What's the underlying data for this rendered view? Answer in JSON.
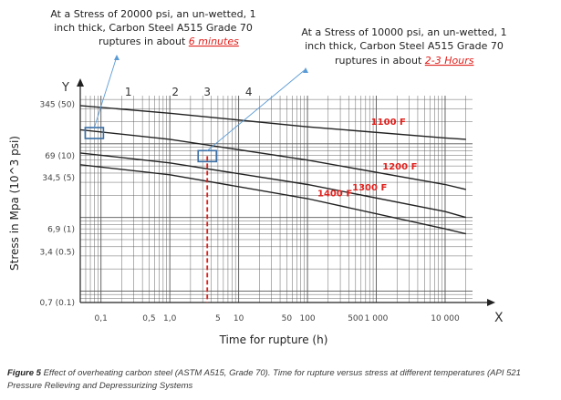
{
  "chart_data": {
    "type": "line",
    "title": "",
    "xlabel": "Time for rupture (h)",
    "ylabel": "Stress in Mpa (10^3 psi)",
    "x_axis_letter": "X",
    "y_axis_letter": "Y",
    "xscale": "log",
    "yscale": "log",
    "xlim": [
      0.05,
      25000
    ],
    "ylim": [
      0.7,
      450
    ],
    "x_tick_labels": [
      "0,1",
      "0,5",
      "1,0",
      "5",
      "10",
      "50",
      "100",
      "500",
      "1 000",
      "10 000"
    ],
    "y_tick_labels": [
      "345 (50)",
      "69 (10)",
      "34,5 (5)",
      "6,9 (1)",
      "3,4 (0.5)",
      "0,7 (0.1)"
    ],
    "curve_numbers": [
      "1",
      "2",
      "3",
      "4"
    ],
    "series": [
      {
        "name": "1100 F",
        "x": [
          0.05,
          1,
          100,
          10000,
          20000
        ],
        "y": [
          330,
          260,
          170,
          120,
          115
        ]
      },
      {
        "name": "1200 F",
        "x": [
          0.05,
          1,
          100,
          10000,
          20000
        ],
        "y": [
          155,
          115,
          60,
          28,
          24
        ]
      },
      {
        "name": "1300 F",
        "x": [
          0.05,
          1,
          100,
          10000,
          20000
        ],
        "y": [
          75,
          55,
          28,
          12,
          10
        ]
      },
      {
        "name": "1400 F",
        "x": [
          0.05,
          1,
          100,
          10000,
          20000
        ],
        "y": [
          52,
          38,
          18,
          7,
          6
        ]
      }
    ],
    "highlight_markers": [
      {
        "x": 0.08,
        "y": 140
      },
      {
        "x": 3.5,
        "y": 68
      }
    ],
    "red_dashed_line_x": 3.5,
    "annotations": [
      {
        "lines": [
          "At a Stress of 20000 psi, an un-wetted, 1",
          "inch thick, Carbon Steel A515 Grade 70",
          "ruptures in about "
        ],
        "highlight": "6 minutes"
      },
      {
        "lines": [
          "At a Stress of 10000 psi, an un-wetted, 1",
          "inch thick, Carbon Steel A515 Grade 70",
          "ruptures in about "
        ],
        "highlight": "2-3 Hours"
      }
    ],
    "grid": true,
    "legend": "inline labels on curves",
    "colors": {
      "curve": "#222222",
      "grid": "#555555",
      "label_red": "#e0201c",
      "marker": "#3a6ea5",
      "pointer": "#5b9bd5"
    }
  },
  "caption": {
    "label": "Figure 5",
    "text": " Effect of overheating carbon steel (ASTM A515, Grade 70). Time for rupture versus stress at different temperatures (API 521 Pressure Relieving and Depressurizing Systems"
  }
}
